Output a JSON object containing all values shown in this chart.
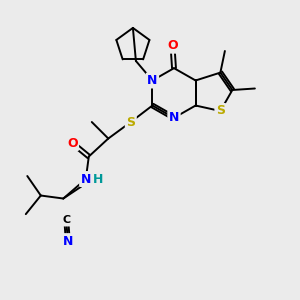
{
  "background_color": "#ebebeb",
  "atom_colors": {
    "N": "#0000ff",
    "O": "#ff0000",
    "S": "#bbaa00",
    "C": "#000000",
    "H": "#009999"
  },
  "bond_color": "#000000",
  "lw": 1.4,
  "fs": 9
}
